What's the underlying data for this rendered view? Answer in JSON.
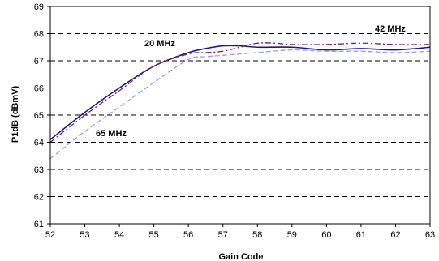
{
  "chart_data": {
    "type": "line",
    "title": "",
    "xlabel": "Gain Code",
    "ylabel": "P1dB (dBmV)",
    "xlim": [
      52,
      63
    ],
    "ylim": [
      61,
      69
    ],
    "x_ticks": [
      "52",
      "53",
      "54",
      "55",
      "56",
      "57",
      "58",
      "59",
      "60",
      "61",
      "62",
      "63"
    ],
    "y_ticks": [
      "61",
      "62",
      "63",
      "64",
      "65",
      "66",
      "67",
      "68",
      "69"
    ],
    "grid": "horizontal dashed",
    "legend": "none",
    "annotations": [
      "20 MHz",
      "42 MHz",
      "65 MHz"
    ],
    "series": [
      {
        "name": "20 MHz",
        "color": "#1a1a8c",
        "style": "solid",
        "x": [
          52,
          53,
          54,
          55,
          56,
          56.5,
          57,
          57.5,
          58,
          59,
          60,
          61,
          62,
          63
        ],
        "y": [
          64.1,
          65.1,
          66.0,
          66.8,
          67.3,
          67.45,
          67.55,
          67.55,
          67.5,
          67.5,
          67.4,
          67.45,
          67.4,
          67.5
        ]
      },
      {
        "name": "42 MHz",
        "color": "#8c1a3c",
        "style": "dashdot",
        "x": [
          52,
          53,
          54,
          55,
          56,
          56.5,
          57,
          57.5,
          58,
          58.5,
          59,
          60,
          61,
          62,
          63
        ],
        "y": [
          64.0,
          65.0,
          65.9,
          66.8,
          67.25,
          67.3,
          67.35,
          67.5,
          67.65,
          67.65,
          67.6,
          67.6,
          67.65,
          67.6,
          67.6
        ]
      },
      {
        "name": "65 MHz",
        "color": "#9a9aee",
        "style": "dashed",
        "x": [
          52,
          53,
          54,
          55,
          56,
          56.5,
          57,
          58,
          59,
          60,
          61,
          62,
          63
        ],
        "y": [
          63.4,
          64.4,
          65.3,
          66.2,
          67.05,
          67.15,
          67.2,
          67.3,
          67.4,
          67.35,
          67.35,
          67.3,
          67.35
        ]
      }
    ]
  }
}
